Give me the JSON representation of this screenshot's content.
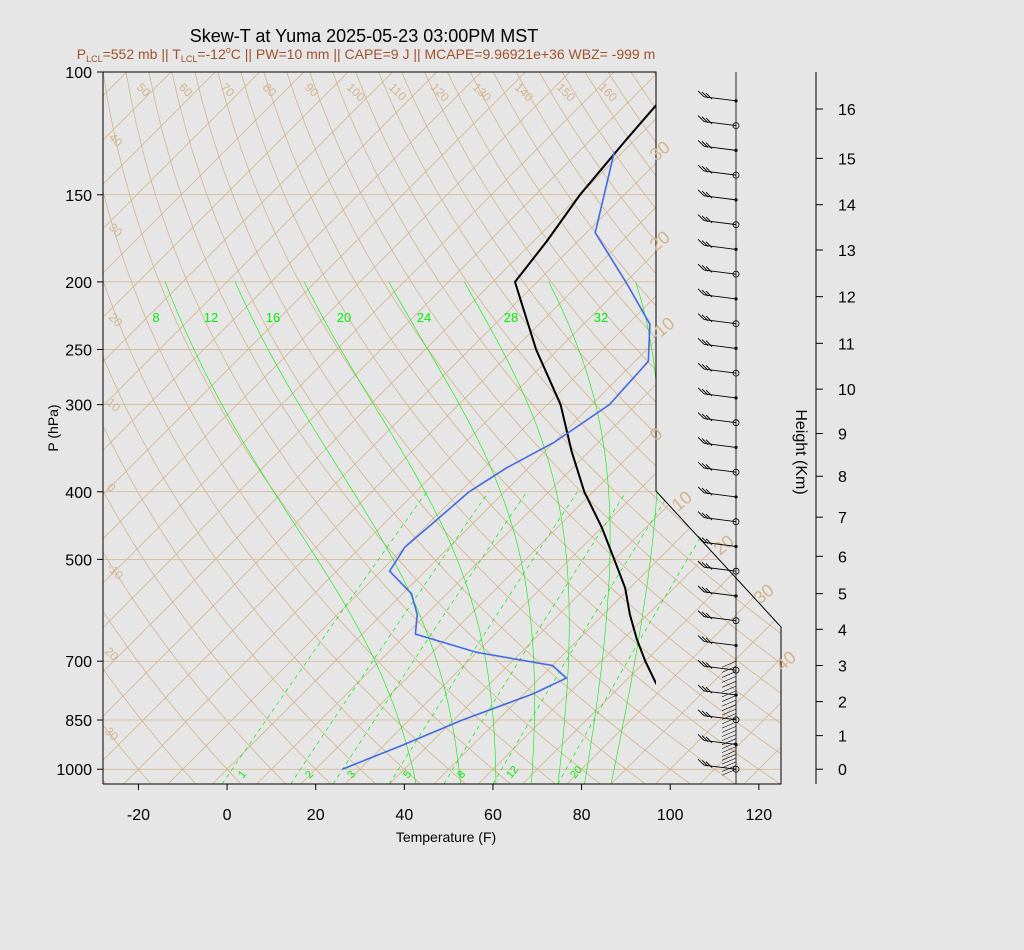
{
  "title": "Skew-T at Yuma 2025-05-23 03:00PM MST",
  "subtitle": {
    "p_lcl_prefix": "P",
    "p_lcl_sub": "LCL",
    "p_lcl_value": "=552 mb || T",
    "t_lcl_sub": "LCL",
    "t_lcl_value": "=-12",
    "deg_sup": "o",
    "rest": "C || PW=10 mm || CAPE=9 J || MCAPE=9.96921e+36 WBZ= -999 m"
  },
  "colors": {
    "title": "#000000",
    "subtitle": "#a0522d",
    "background": "#e6e6e6",
    "isotherm_adiabat": "#d2b48c",
    "mixing_ratio": "#00ee00",
    "dewpoint": "#4169e1",
    "temperature": "#000000",
    "parcel": "#ff0000"
  },
  "chart_data": {
    "type": "line",
    "chart_kind": "skew-t log-p",
    "xlabel": "Temperature (F)",
    "ylabel": "P (hPa)",
    "right_label": "Height (Km)",
    "xlim": [
      -28,
      125
    ],
    "ylim_hpa": [
      1050,
      100
    ],
    "x_ticks": [
      -20,
      0,
      20,
      40,
      60,
      80,
      100,
      120
    ],
    "p_ticks": [
      100,
      150,
      200,
      250,
      300,
      400,
      500,
      700,
      850,
      1000
    ],
    "height_ticks": [
      "0",
      "1",
      "2",
      "3",
      "4",
      "5",
      "6",
      "7",
      "8",
      "9",
      "10",
      "11",
      "12",
      "13",
      "14",
      "15",
      "16"
    ],
    "height_tick_p": [
      1000,
      895,
      800,
      710,
      630,
      560,
      495,
      435,
      380,
      330,
      285,
      245,
      210,
      180,
      155,
      133,
      113
    ],
    "isotherm_labels": [
      "50",
      "60",
      "70",
      "80",
      "90",
      "100",
      "110",
      "120",
      "130",
      "140",
      "150",
      "160"
    ],
    "isotherm_label_temps_top": [
      -40,
      -30,
      -20,
      -10,
      0,
      10,
      20,
      30,
      40,
      50,
      60,
      70
    ],
    "left_isotherm_labels": [
      "40",
      "30",
      "20",
      "10",
      "0",
      "-10",
      "20",
      "30"
    ],
    "right_isotherm_labels": [
      "30",
      "20",
      "-10",
      "0",
      "10",
      "20",
      "30",
      "40"
    ],
    "mixing_ratio_top_labels": [
      "8",
      "12",
      "16",
      "20",
      "24",
      "28",
      "32"
    ],
    "mixing_ratio_bottom_labels": [
      "1",
      "2",
      "3",
      "5",
      "8",
      "12",
      "20"
    ],
    "series": [
      {
        "name": "temperature",
        "pressure": [
          1000,
          970,
          925,
          850,
          800,
          750,
          700,
          650,
          600,
          550,
          500,
          450,
          400,
          350,
          300,
          250,
          200,
          175,
          150,
          125,
          100
        ],
        "temp_f": [
          110,
          107,
          102,
          91,
          84,
          77,
          70,
          63,
          56,
          49,
          40,
          30,
          18,
          6,
          -7,
          -25,
          -45,
          -47,
          -50,
          -52,
          -54
        ]
      },
      {
        "name": "dewpoint",
        "pressure": [
          1000,
          925,
          850,
          780,
          740,
          710,
          680,
          640,
          600,
          560,
          520,
          480,
          440,
          400,
          370,
          340,
          300,
          260,
          230,
          200,
          170,
          130
        ],
        "temp_f": [
          26,
          34,
          42,
          52,
          56,
          50,
          30,
          12,
          8,
          2,
          -8,
          -10,
          -9,
          -8,
          -5,
          0,
          4,
          3,
          -5,
          -20,
          -38,
          -52
        ]
      }
    ],
    "wind_barbs_count": 28
  }
}
